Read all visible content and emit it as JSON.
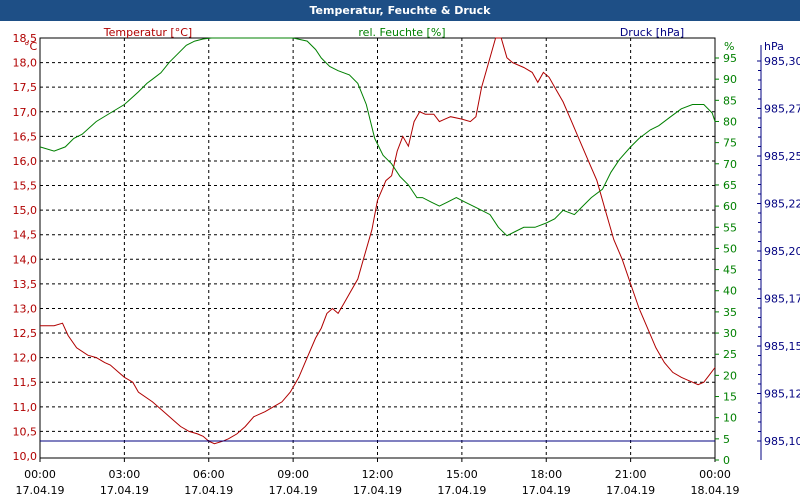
{
  "window": {
    "title": "Temperatur, Feuchte & Druck"
  },
  "chart_data": {
    "type": "line",
    "title": "Temperatur, Feuchte & Druck",
    "grid": true,
    "x_unit": "hours since 17.04.19 00:00",
    "x_range": [
      0,
      24
    ],
    "x_ticks": [
      {
        "x": 0,
        "time": "00:00",
        "date": "17.04.19"
      },
      {
        "x": 3,
        "time": "03:00",
        "date": "17.04.19"
      },
      {
        "x": 6,
        "time": "06:00",
        "date": "17.04.19"
      },
      {
        "x": 9,
        "time": "09:00",
        "date": "17.04.19"
      },
      {
        "x": 12,
        "time": "12:00",
        "date": "17.04.19"
      },
      {
        "x": 15,
        "time": "15:00",
        "date": "17.04.19"
      },
      {
        "x": 18,
        "time": "18:00",
        "date": "17.04.19"
      },
      {
        "x": 21,
        "time": "21:00",
        "date": "17.04.19"
      },
      {
        "x": 24,
        "time": "00:00",
        "date": "18.04.19"
      }
    ],
    "axes": {
      "temperature": {
        "label": "Temperatur [°C]",
        "unit": "°C",
        "color": "#b00000",
        "side": "left",
        "range": [
          10.0,
          19.0
        ],
        "ticks": [
          "10,0",
          "10,5",
          "11,0",
          "11,5",
          "12,0",
          "12,5",
          "13,0",
          "13,5",
          "14,0",
          "14,5",
          "15,0",
          "15,5",
          "16,0",
          "16,5",
          "17,0",
          "17,5",
          "18,0",
          "18,5"
        ]
      },
      "humidity": {
        "label": "rel. Feuchte [%]",
        "unit": "%",
        "color": "#008000",
        "side": "right-inner",
        "range": [
          0,
          90
        ],
        "ticks": [
          "0",
          "5",
          "10",
          "15",
          "20",
          "25",
          "30",
          "35",
          "40",
          "45",
          "50",
          "55",
          "60",
          "65",
          "70",
          "75",
          "80",
          "85",
          "90",
          "95"
        ]
      },
      "pressure": {
        "label": "Druck [hPa]",
        "unit": "hPa",
        "color": "#000080",
        "side": "right-outer",
        "range": [
          985.09,
          985.31
        ],
        "ticks": [
          {
            "value": 985.1,
            "label": "985,10"
          },
          {
            "value": 985.125,
            "label": "985,12"
          },
          {
            "value": 985.15,
            "label": "985,15"
          },
          {
            "value": 985.175,
            "label": "985,17"
          },
          {
            "value": 985.2,
            "label": "985,20"
          },
          {
            "value": 985.225,
            "label": "985,22"
          },
          {
            "value": 985.25,
            "label": "985,25"
          },
          {
            "value": 985.275,
            "label": "985,27"
          },
          {
            "value": 985.3,
            "label": "985,30"
          }
        ]
      }
    },
    "series": [
      {
        "name": "Temperatur [°C]",
        "axis": "temperature",
        "color": "#b00000",
        "points": [
          [
            0,
            12.65
          ],
          [
            0.5,
            12.65
          ],
          [
            0.8,
            12.7
          ],
          [
            1,
            12.45
          ],
          [
            1.3,
            12.2
          ],
          [
            1.7,
            12.05
          ],
          [
            2,
            12.0
          ],
          [
            2.3,
            11.9
          ],
          [
            2.5,
            11.85
          ],
          [
            2.8,
            11.7
          ],
          [
            3,
            11.6
          ],
          [
            3.3,
            11.5
          ],
          [
            3.5,
            11.3
          ],
          [
            4,
            11.1
          ],
          [
            4.4,
            10.9
          ],
          [
            4.8,
            10.7
          ],
          [
            5,
            10.6
          ],
          [
            5.3,
            10.5
          ],
          [
            5.6,
            10.45
          ],
          [
            5.8,
            10.4
          ],
          [
            6,
            10.3
          ],
          [
            6.2,
            10.25
          ],
          [
            6.5,
            10.3
          ],
          [
            6.7,
            10.35
          ],
          [
            7,
            10.45
          ],
          [
            7.3,
            10.6
          ],
          [
            7.6,
            10.8
          ],
          [
            8,
            10.9
          ],
          [
            8.3,
            11.0
          ],
          [
            8.6,
            11.1
          ],
          [
            8.9,
            11.3
          ],
          [
            9.2,
            11.6
          ],
          [
            9.5,
            12.0
          ],
          [
            9.8,
            12.4
          ],
          [
            10,
            12.6
          ],
          [
            10.2,
            12.9
          ],
          [
            10.4,
            13.0
          ],
          [
            10.6,
            12.9
          ],
          [
            10.8,
            13.1
          ],
          [
            11,
            13.3
          ],
          [
            11.3,
            13.6
          ],
          [
            11.5,
            14.0
          ],
          [
            11.8,
            14.6
          ],
          [
            12,
            15.2
          ],
          [
            12.3,
            15.6
          ],
          [
            12.5,
            15.7
          ],
          [
            12.7,
            16.2
          ],
          [
            12.9,
            16.5
          ],
          [
            13.1,
            16.3
          ],
          [
            13.3,
            16.8
          ],
          [
            13.5,
            17.0
          ],
          [
            13.7,
            16.95
          ],
          [
            14,
            16.95
          ],
          [
            14.2,
            16.8
          ],
          [
            14.4,
            16.85
          ],
          [
            14.6,
            16.9
          ],
          [
            15,
            16.85
          ],
          [
            15.3,
            16.8
          ],
          [
            15.5,
            16.9
          ],
          [
            15.7,
            17.5
          ],
          [
            16,
            18.1
          ],
          [
            16.2,
            18.55
          ],
          [
            16.4,
            18.5
          ],
          [
            16.6,
            18.1
          ],
          [
            16.8,
            18.0
          ],
          [
            17.2,
            17.9
          ],
          [
            17.5,
            17.8
          ],
          [
            17.7,
            17.6
          ],
          [
            17.9,
            17.8
          ],
          [
            18.1,
            17.7
          ],
          [
            18.3,
            17.5
          ],
          [
            18.6,
            17.2
          ],
          [
            18.9,
            16.8
          ],
          [
            19.2,
            16.4
          ],
          [
            19.5,
            16.0
          ],
          [
            19.8,
            15.6
          ],
          [
            20.1,
            15.0
          ],
          [
            20.4,
            14.4
          ],
          [
            20.7,
            14.0
          ],
          [
            21,
            13.5
          ],
          [
            21.3,
            13.0
          ],
          [
            21.6,
            12.6
          ],
          [
            21.9,
            12.2
          ],
          [
            22.2,
            11.9
          ],
          [
            22.5,
            11.7
          ],
          [
            22.8,
            11.6
          ],
          [
            23,
            11.55
          ],
          [
            23.2,
            11.5
          ],
          [
            23.4,
            11.45
          ],
          [
            23.6,
            11.5
          ],
          [
            23.8,
            11.65
          ],
          [
            24,
            11.8
          ]
        ]
      },
      {
        "name": "rel. Feuchte [%]",
        "axis": "humidity",
        "color": "#008000",
        "points": [
          [
            0,
            74
          ],
          [
            0.5,
            73
          ],
          [
            0.9,
            74
          ],
          [
            1.2,
            76
          ],
          [
            1.5,
            77
          ],
          [
            2,
            80
          ],
          [
            2.5,
            82
          ],
          [
            3,
            84
          ],
          [
            3.5,
            87
          ],
          [
            3.8,
            89
          ],
          [
            4,
            90
          ],
          [
            4.3,
            91.5
          ],
          [
            4.6,
            94
          ],
          [
            4.9,
            96
          ],
          [
            5.2,
            98
          ],
          [
            5.5,
            99
          ],
          [
            5.8,
            99.5
          ],
          [
            6.1,
            100
          ],
          [
            6.5,
            100
          ],
          [
            7,
            100
          ],
          [
            7.5,
            100
          ],
          [
            8,
            100
          ],
          [
            8.5,
            100
          ],
          [
            9,
            100
          ],
          [
            9.5,
            99
          ],
          [
            9.8,
            97
          ],
          [
            10,
            95
          ],
          [
            10.3,
            93
          ],
          [
            10.6,
            92
          ],
          [
            11,
            91
          ],
          [
            11.3,
            89
          ],
          [
            11.6,
            84
          ],
          [
            11.9,
            76
          ],
          [
            12.2,
            72
          ],
          [
            12.5,
            70
          ],
          [
            12.8,
            67
          ],
          [
            13.1,
            65
          ],
          [
            13.4,
            62
          ],
          [
            13.6,
            62
          ],
          [
            13.9,
            61
          ],
          [
            14.2,
            60
          ],
          [
            14.5,
            61
          ],
          [
            14.8,
            62
          ],
          [
            15.1,
            61
          ],
          [
            15.4,
            60
          ],
          [
            15.7,
            59
          ],
          [
            16,
            58
          ],
          [
            16.3,
            55
          ],
          [
            16.6,
            53
          ],
          [
            16.9,
            54
          ],
          [
            17.2,
            55
          ],
          [
            17.6,
            55
          ],
          [
            18,
            56
          ],
          [
            18.3,
            57
          ],
          [
            18.6,
            59
          ],
          [
            19,
            58
          ],
          [
            19.3,
            60
          ],
          [
            19.6,
            62
          ],
          [
            20,
            64
          ],
          [
            20.3,
            68
          ],
          [
            20.6,
            71
          ],
          [
            21,
            74
          ],
          [
            21.3,
            76
          ],
          [
            21.7,
            78
          ],
          [
            22,
            79
          ],
          [
            22.4,
            81
          ],
          [
            22.8,
            83
          ],
          [
            23.2,
            84
          ],
          [
            23.6,
            84
          ],
          [
            23.9,
            82
          ],
          [
            24,
            80
          ]
        ]
      },
      {
        "name": "Druck [hPa]",
        "axis": "pressure",
        "color": "#000080",
        "points": [
          [
            0,
            985.1
          ],
          [
            24,
            985.1
          ]
        ]
      }
    ]
  }
}
